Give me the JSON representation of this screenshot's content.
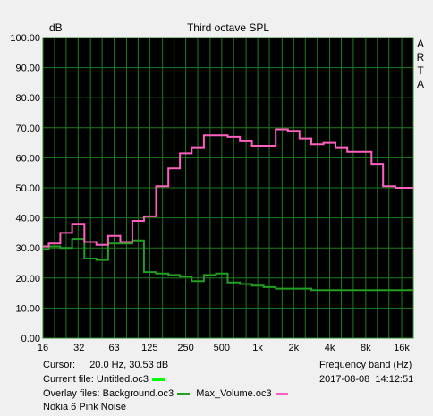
{
  "chart_data": {
    "type": "line",
    "title": "Third octave SPL",
    "ylabel": "dB",
    "xlabel": "Frequency band (Hz)",
    "brand": "ARTA",
    "ylim": [
      0,
      100
    ],
    "x_scale": "log",
    "grid": true,
    "yticks": [
      "0.00",
      "10.00",
      "20.00",
      "30.00",
      "40.00",
      "50.00",
      "60.00",
      "70.00",
      "80.00",
      "90.00",
      "100.00"
    ],
    "xticks": [
      {
        "f": 16,
        "label": "16"
      },
      {
        "f": 32,
        "label": "32"
      },
      {
        "f": 63,
        "label": "63"
      },
      {
        "f": 125,
        "label": "125"
      },
      {
        "f": 250,
        "label": "250"
      },
      {
        "f": 500,
        "label": "500"
      },
      {
        "f": 1000,
        "label": "1k"
      },
      {
        "f": 2000,
        "label": "2k"
      },
      {
        "f": 4000,
        "label": "4k"
      },
      {
        "f": 8000,
        "label": "8k"
      },
      {
        "f": 16000,
        "label": "16k"
      }
    ],
    "bands": [
      16,
      20,
      25,
      31.5,
      40,
      50,
      63,
      80,
      100,
      125,
      160,
      200,
      250,
      315,
      400,
      500,
      630,
      800,
      1000,
      1250,
      1600,
      2000,
      2500,
      3150,
      4000,
      5000,
      6300,
      8000,
      10000,
      12500,
      16000,
      20000
    ],
    "series": [
      {
        "name": "Untitled.oc3",
        "color": "#00ff00",
        "values": []
      },
      {
        "name": "Background.oc3",
        "color": "#20a020",
        "values": [
          29.5,
          30.5,
          30.0,
          33.0,
          26.5,
          26.0,
          31.5,
          31.5,
          32.5,
          22.0,
          21.5,
          21.0,
          20.5,
          19.0,
          21.0,
          21.5,
          18.5,
          18.0,
          17.5,
          17.0,
          16.5,
          16.5,
          16.5,
          16.0,
          16.0,
          16.0,
          16.0,
          16.0,
          16.0,
          16.0,
          16.0,
          16.0
        ]
      },
      {
        "name": "Max_Volume.oc3",
        "color": "#ff60c0",
        "values": [
          30.5,
          31.5,
          35.0,
          38.0,
          32.0,
          31.0,
          34.0,
          32.0,
          39.0,
          40.5,
          50.5,
          56.5,
          61.5,
          63.5,
          67.5,
          67.5,
          67.0,
          65.5,
          64.0,
          64.0,
          69.5,
          69.0,
          66.5,
          64.5,
          65.0,
          63.5,
          62.0,
          62.0,
          58.0,
          50.5,
          50.0,
          50.0
        ]
      }
    ]
  },
  "info": {
    "cursor_label": "Cursor:",
    "cursor_value": "20.0 Hz, 30.53 dB",
    "current_file_label": "Current file: Untitled.oc3",
    "overlay_label": "Overlay files: Background.oc3",
    "overlay_second": "Max_Volume.oc3",
    "note": "Nokia 6 Pink Noise",
    "date": "2017-08-08",
    "time": "14:12:51"
  }
}
